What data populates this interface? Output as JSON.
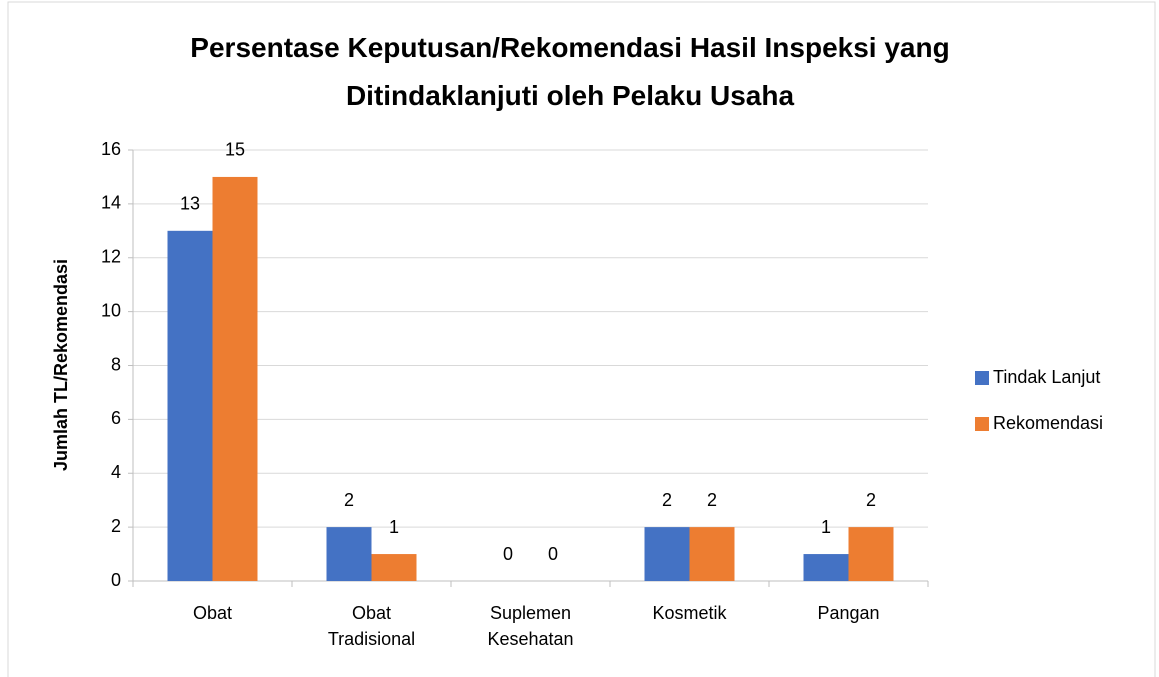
{
  "chart_data": {
    "type": "bar",
    "title": "Persentase Keputusan/Rekomendasi Hasil Inspeksi yang Ditindaklanjuti oleh Pelaku Usaha",
    "y_label": "Jumlah TL/Rekomendasi",
    "categories": [
      "Obat",
      "Obat Tradisional",
      "Suplemen Kesehatan",
      "Kosmetik",
      "Pangan"
    ],
    "series": [
      {
        "name": "Tindak Lanjut",
        "color": "#4472c4",
        "values": [
          13,
          2,
          0,
          2,
          1
        ]
      },
      {
        "name": "Rekomendasi",
        "color": "#ed7d31",
        "values": [
          15,
          1,
          0,
          2,
          2
        ]
      }
    ],
    "ylim": [
      0,
      16
    ],
    "yticks": [
      0,
      2,
      4,
      6,
      8,
      10,
      12,
      14,
      16
    ],
    "grid": true,
    "legend": "right"
  }
}
